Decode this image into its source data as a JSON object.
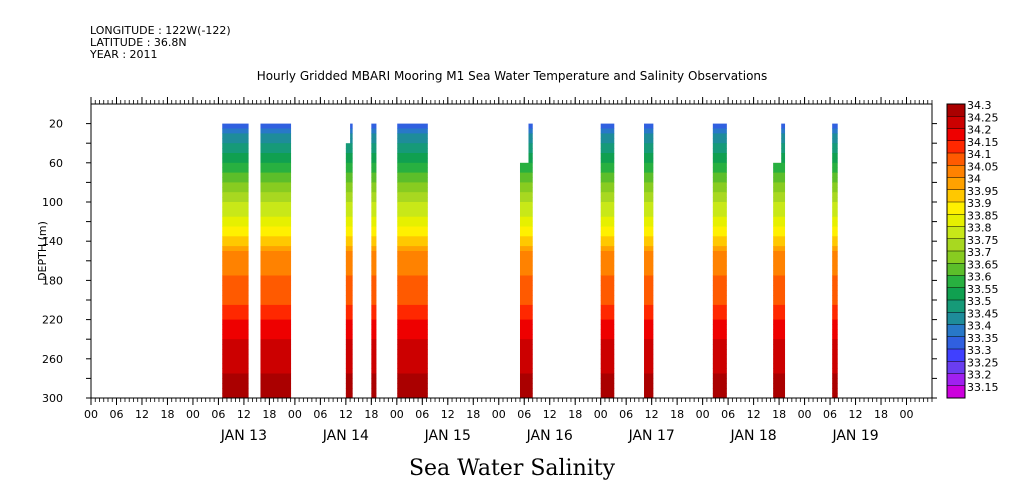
{
  "header": {
    "longitude": "LONGITUDE : 122W(-122)",
    "latitude": "LATITUDE : 36.8N",
    "year": "YEAR : 2011"
  },
  "chart_data": {
    "type": "heatmap",
    "title": "Hourly Gridded MBARI Mooring M1 Sea Water Temperature and Salinity Observations",
    "subtitle": "Sea Water Salinity",
    "ylabel": "DEPTH (m)",
    "xlabel": "",
    "x_unit": "hours since 00:00 JAN 13 2011",
    "xlim": [
      -24,
      174
    ],
    "ylim": [
      0,
      300
    ],
    "y_inverted": true,
    "y_ticks": [
      20,
      60,
      100,
      140,
      180,
      220,
      260,
      300
    ],
    "y_minor_ticks": [
      40,
      80,
      120,
      160,
      200,
      240,
      280
    ],
    "x_hour_ticks": [
      {
        "x": -24,
        "label": "00"
      },
      {
        "x": -18,
        "label": "06"
      },
      {
        "x": -12,
        "label": "12"
      },
      {
        "x": -6,
        "label": "18"
      },
      {
        "x": 0,
        "label": "00"
      },
      {
        "x": 6,
        "label": "06"
      },
      {
        "x": 12,
        "label": "12"
      },
      {
        "x": 18,
        "label": "18"
      },
      {
        "x": 24,
        "label": "00"
      },
      {
        "x": 30,
        "label": "06"
      },
      {
        "x": 36,
        "label": "12"
      },
      {
        "x": 42,
        "label": "18"
      },
      {
        "x": 48,
        "label": "00"
      },
      {
        "x": 54,
        "label": "06"
      },
      {
        "x": 60,
        "label": "12"
      },
      {
        "x": 66,
        "label": "18"
      },
      {
        "x": 72,
        "label": "00"
      },
      {
        "x": 78,
        "label": "06"
      },
      {
        "x": 84,
        "label": "12"
      },
      {
        "x": 90,
        "label": "18"
      },
      {
        "x": 96,
        "label": "00"
      },
      {
        "x": 102,
        "label": "06"
      },
      {
        "x": 108,
        "label": "12"
      },
      {
        "x": 114,
        "label": "18"
      },
      {
        "x": 120,
        "label": "00"
      },
      {
        "x": 126,
        "label": "06"
      },
      {
        "x": 132,
        "label": "12"
      },
      {
        "x": 138,
        "label": "18"
      },
      {
        "x": 144,
        "label": "00"
      },
      {
        "x": 150,
        "label": "06"
      },
      {
        "x": 156,
        "label": "12"
      },
      {
        "x": 162,
        "label": "18"
      },
      {
        "x": 168,
        "label": "00"
      }
    ],
    "x_day_labels": [
      {
        "x": 12,
        "label": "JAN 13"
      },
      {
        "x": 36,
        "label": "JAN 14"
      },
      {
        "x": 60,
        "label": "JAN 15"
      },
      {
        "x": 84,
        "label": "JAN 16"
      },
      {
        "x": 108,
        "label": "JAN 17"
      },
      {
        "x": 132,
        "label": "JAN 18"
      },
      {
        "x": 156,
        "label": "JAN 19"
      }
    ],
    "levels": [
      "33.15",
      "33.2",
      "33.25",
      "33.3",
      "33.35",
      "33.4",
      "33.45",
      "33.5",
      "33.55",
      "33.6",
      "33.65",
      "33.7",
      "33.75",
      "33.8",
      "33.85",
      "33.9",
      "33.95",
      "34",
      "34.05",
      "34.1",
      "34.15",
      "34.2",
      "34.25",
      "34.3"
    ],
    "colors": [
      "#cc00dd",
      "#a020f0",
      "#6a3df0",
      "#4040ff",
      "#3060e0",
      "#2878c8",
      "#1e8c9a",
      "#169a78",
      "#10a050",
      "#28b040",
      "#5cbe2a",
      "#88cc20",
      "#a8d820",
      "#c8e818",
      "#e6f000",
      "#fff000",
      "#ffc800",
      "#ffa200",
      "#ff8200",
      "#ff5a00",
      "#ff2800",
      "#ee0000",
      "#cc0000",
      "#aa0000"
    ],
    "segments": [
      {
        "x0": 6.9,
        "x1": 13.1,
        "top": 20
      },
      {
        "x0": 15.9,
        "x1": 23.1,
        "top": 20
      },
      {
        "x0": 36.0,
        "x1": 37.6,
        "top": 20,
        "shallow_end": 37.0,
        "shallow_top": 40
      },
      {
        "x0": 42.0,
        "x1": 43.2,
        "top": 20
      },
      {
        "x0": 48.1,
        "x1": 55.3,
        "top": 20
      },
      {
        "x0": 77.0,
        "x1": 80.0,
        "top": 20,
        "shallow_end": 79.0,
        "shallow_top": 60
      },
      {
        "x0": 96.0,
        "x1": 99.2,
        "top": 20
      },
      {
        "x0": 106.2,
        "x1": 108.4,
        "top": 20
      },
      {
        "x0": 122.4,
        "x1": 125.7,
        "top": 20
      },
      {
        "x0": 136.6,
        "x1": 139.4,
        "top": 20,
        "shallow_end": 138.5,
        "shallow_top": 60
      },
      {
        "x0": 150.5,
        "x1": 151.8,
        "top": 20
      }
    ]
  }
}
